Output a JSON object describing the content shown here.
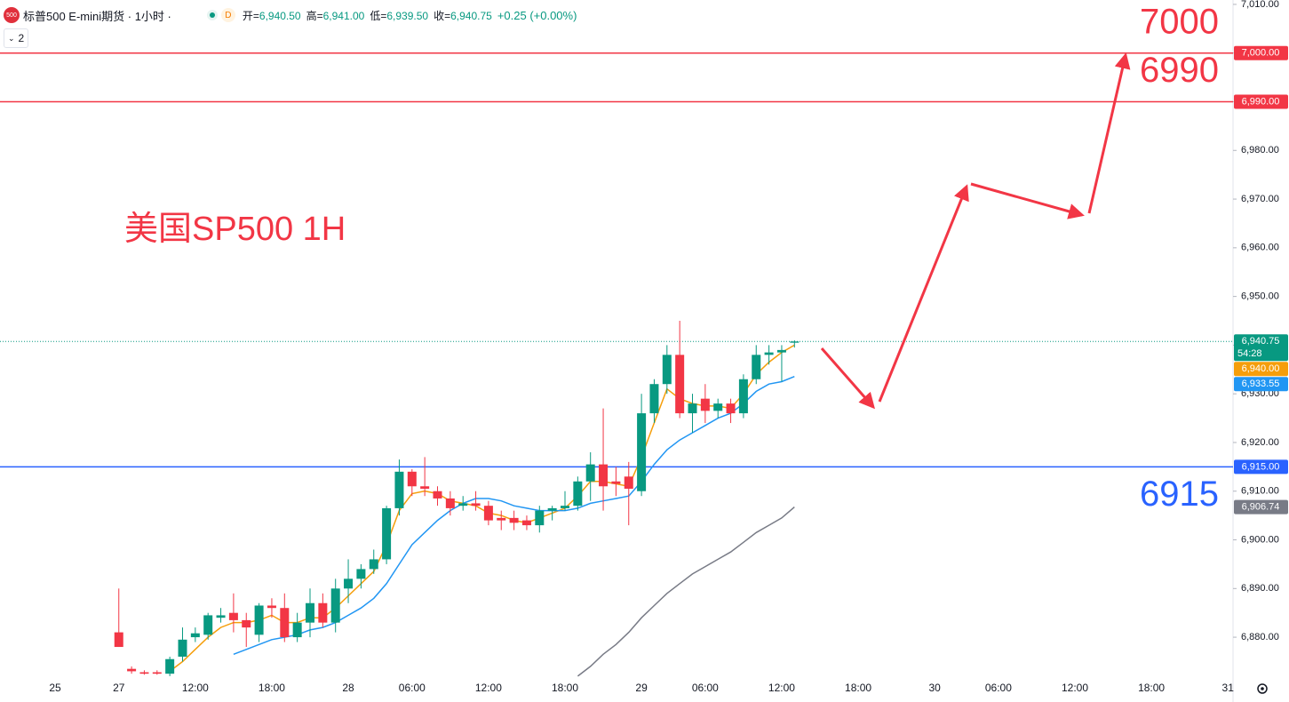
{
  "header": {
    "logo": "500",
    "title": "标普500 E-mini期货 · 1小时 ·",
    "badge": "D",
    "ohlc": [
      {
        "label": "开=",
        "value": "6,940.50"
      },
      {
        "label": "高=",
        "value": "6,941.00"
      },
      {
        "label": "低=",
        "value": "6,939.50"
      },
      {
        "label": "收=",
        "value": "6,940.75"
      }
    ],
    "change": "+0.25 (+0.00%)",
    "indicators": "2"
  },
  "chart_data": {
    "type": "candlestick",
    "annotation": "美国SP500 1H",
    "up_color": "#089981",
    "down_color": "#f23645",
    "categories": [
      "25",
      null,
      null,
      null,
      null,
      "27",
      null,
      null,
      null,
      null,
      null,
      "12:00",
      null,
      null,
      null,
      null,
      null,
      "18:00",
      null,
      null,
      null,
      null,
      null,
      "28",
      null,
      null,
      null,
      null,
      "06:00",
      null,
      null,
      null,
      null,
      null,
      "12:00",
      null,
      null,
      null,
      null,
      null,
      "18:00",
      null,
      null,
      null,
      null,
      null,
      "29",
      null,
      null,
      null,
      null,
      "06:00",
      null,
      null,
      null,
      null,
      null,
      "12:00",
      null,
      null,
      null,
      null,
      null,
      "18:00",
      null,
      null,
      null,
      null,
      null,
      "30",
      null,
      null,
      null,
      null,
      "06:00",
      null,
      null,
      null,
      null,
      null,
      "12:00",
      null,
      null,
      null,
      null,
      null,
      "18:00",
      null,
      null,
      null,
      null,
      null,
      "31"
    ],
    "open": [
      null,
      null,
      null,
      null,
      null,
      6881,
      6873.5,
      6872.8,
      6872.8,
      6872.5,
      6876,
      6880,
      6880.5,
      6884,
      6885,
      6883.5,
      6880.5,
      6886.5,
      6886,
      6880,
      6883,
      6887,
      6883,
      6890,
      6892,
      6894,
      6896,
      6906.5,
      6914,
      6911,
      6910,
      6908.5,
      6907,
      6907.5,
      6907,
      6904.5,
      6904.5,
      6904,
      6903,
      6906,
      6906.5,
      6907,
      6912,
      6915.5,
      6912,
      6913,
      6910,
      6926,
      6932,
      6938,
      6926,
      6929,
      6926.5,
      6928,
      6926,
      6933,
      6938,
      6938.5,
      6940.5,
      null,
      null,
      null,
      null,
      null,
      null,
      null,
      null,
      null,
      null,
      null,
      null,
      null,
      null,
      null,
      null,
      null,
      null,
      null,
      null,
      null,
      null,
      null,
      null,
      null,
      null,
      null,
      null,
      null,
      null,
      null,
      null,
      null,
      null
    ],
    "high": [
      null,
      null,
      null,
      null,
      null,
      6890,
      6874,
      6873.2,
      6873.2,
      6876,
      6882,
      6882,
      6885,
      6886,
      6889,
      6885,
      6887,
      6888,
      6889,
      6885,
      6890,
      6889,
      6892,
      6896,
      6895,
      6898,
      6907,
      6916.5,
      6914.5,
      6917,
      6911,
      6910,
      6909,
      6910,
      6908,
      6906,
      6906,
      6905,
      6907,
      6907,
      6910,
      6913,
      6918,
      6927,
      6915,
      6916,
      6930,
      6933,
      6940,
      6945,
      6930,
      6932,
      6929,
      6929,
      6934,
      6940,
      6940,
      6940,
      6941,
      null,
      null,
      null,
      null,
      null,
      null,
      null,
      null,
      null,
      null,
      null,
      null,
      null,
      null,
      null,
      null,
      null,
      null,
      null,
      null,
      null,
      null,
      null,
      null,
      null,
      null,
      null,
      null,
      null,
      null,
      null,
      null,
      null,
      null
    ],
    "low": [
      null,
      null,
      null,
      null,
      null,
      6878,
      6872.5,
      6872.3,
      6872.3,
      6872,
      6875,
      6879,
      6879.5,
      6883,
      6881,
      6878,
      6879,
      6884,
      6879,
      6879,
      6880,
      6882,
      6881,
      6887,
      6890,
      6893,
      6895,
      6905,
      6909,
      6909,
      6907,
      6905,
      6906,
      6906,
      6903,
      6902,
      6902,
      6902,
      6901.5,
      6904,
      6906,
      6906,
      6908,
      6906,
      6909,
      6903,
      6909,
      6924,
      6930,
      6925,
      6922,
      6924,
      6925,
      6924,
      6925,
      6932,
      6936,
      6932.5,
      6939.5,
      null,
      null,
      null,
      null,
      null,
      null,
      null,
      null,
      null,
      null,
      null,
      null,
      null,
      null,
      null,
      null,
      null,
      null,
      null,
      null,
      null,
      null,
      null,
      null,
      null,
      null,
      null,
      null,
      null,
      null,
      null,
      null,
      null,
      null
    ],
    "close": [
      null,
      null,
      null,
      null,
      null,
      6878,
      6873,
      6872.5,
      6872.5,
      6875.5,
      6879.5,
      6880.8,
      6884.5,
      6884.5,
      6883.5,
      6882,
      6886.5,
      6886,
      6880,
      6883,
      6887,
      6883,
      6890,
      6892,
      6894,
      6896,
      6906.5,
      6914,
      6911,
      6910.5,
      6908.5,
      6906.5,
      6907.5,
      6907,
      6904,
      6904,
      6903.5,
      6903,
      6906,
      6906.5,
      6907,
      6912,
      6915.5,
      6911,
      6911.5,
      6910.5,
      6926,
      6932,
      6938,
      6926,
      6928,
      6926.5,
      6928,
      6926,
      6933,
      6938,
      6938.5,
      6939,
      6940.75,
      null,
      null,
      null,
      null,
      null,
      null,
      null,
      null,
      null,
      null,
      null,
      null,
      null,
      null,
      null,
      null,
      null,
      null,
      null,
      null,
      null,
      null,
      null,
      null,
      null,
      null,
      null,
      null,
      null,
      null,
      null,
      null,
      null,
      null
    ],
    "series": [
      {
        "color": "#f59e0b",
        "last_label": "6,940.00",
        "values": [
          null,
          null,
          null,
          null,
          null,
          null,
          null,
          null,
          null,
          6873,
          6875,
          6877.5,
          6880,
          6882,
          6883,
          6883,
          6883.5,
          6884.5,
          6883,
          6883,
          6884,
          6884,
          6886,
          6888.5,
          6891,
          6893.5,
          6899,
          6906,
          6909.5,
          6910,
          6909.5,
          6908,
          6907.5,
          6907,
          6905.5,
          6905,
          6904,
          6903.5,
          6904.5,
          6905.5,
          6906.5,
          6909,
          6912,
          6912,
          6911.5,
          6911,
          6917,
          6924,
          6931,
          6929,
          6928,
          6927.5,
          6927.5,
          6927,
          6930,
          6934,
          6936.5,
          6938.5,
          6940,
          null,
          null,
          null,
          null,
          null,
          null,
          null,
          null,
          null,
          null,
          null,
          null,
          null,
          null,
          null,
          null,
          null,
          null,
          null,
          null,
          null,
          null,
          null,
          null,
          null,
          null,
          null,
          null,
          null,
          null,
          null,
          null,
          null,
          null
        ]
      },
      {
        "color": "#2196f3",
        "last_label": "6,933.55",
        "values": [
          null,
          null,
          null,
          null,
          null,
          null,
          null,
          null,
          null,
          null,
          null,
          null,
          null,
          null,
          6876.5,
          6877.5,
          6878.5,
          6879.5,
          6880,
          6880.5,
          6881.5,
          6882,
          6883,
          6884.5,
          6886,
          6888,
          6891,
          6895,
          6899,
          6901.5,
          6904,
          6906,
          6907.5,
          6908.5,
          6908.5,
          6908,
          6907,
          6906.5,
          6906,
          6906,
          6906,
          6906.5,
          6907.5,
          6908,
          6908.5,
          6909,
          6912,
          6915.5,
          6918.5,
          6920.5,
          6922,
          6923.5,
          6925,
          6926,
          6928,
          6930.5,
          6932,
          6932.5,
          6933.55,
          null,
          null,
          null,
          null,
          null,
          null,
          null,
          null,
          null,
          null,
          null,
          null,
          null,
          null,
          null,
          null,
          null,
          null,
          null,
          null,
          null,
          null,
          null,
          null,
          null,
          null,
          null,
          null,
          null,
          null,
          null,
          null,
          null,
          null
        ]
      },
      {
        "color": "#787b86",
        "last_label": "6,906.74",
        "values": [
          null,
          null,
          null,
          null,
          null,
          null,
          null,
          null,
          null,
          null,
          null,
          null,
          null,
          null,
          null,
          null,
          null,
          null,
          null,
          null,
          null,
          null,
          null,
          null,
          null,
          null,
          null,
          null,
          null,
          null,
          null,
          null,
          null,
          null,
          null,
          null,
          null,
          null,
          null,
          null,
          null,
          6872,
          6874,
          6876.5,
          6878.5,
          6881,
          6884,
          6886.5,
          6889,
          6891,
          6893,
          6894.5,
          6896,
          6897.5,
          6899.5,
          6901.5,
          6903,
          6904.5,
          6906.74,
          null,
          null,
          null,
          null,
          null,
          null,
          null,
          null,
          null,
          null,
          null,
          null,
          null,
          null,
          null,
          null,
          null,
          null,
          null,
          null,
          null,
          null,
          null,
          null,
          null,
          null,
          null,
          null,
          null,
          null,
          null,
          null,
          null,
          null
        ]
      }
    ],
    "last_price": {
      "value": 6940.75,
      "label": "6,940.75",
      "countdown": "54:28",
      "color": "#089981"
    },
    "levels": [
      {
        "value": 7000,
        "label": "7,000.00",
        "note": "7000",
        "color": "#f23645"
      },
      {
        "value": 6990,
        "label": "6,990.00",
        "note": "6990",
        "color": "#f23645"
      },
      {
        "value": 6915,
        "label": "6,915.00",
        "note": "6915",
        "color": "#2962ff"
      }
    ],
    "ylim": [
      6871.8,
      7010.9
    ],
    "yticks": [
      {
        "value": 6880,
        "label": "6,880.00"
      },
      {
        "value": 6890,
        "label": "6,890.00"
      },
      {
        "value": 6900,
        "label": "6,900.00"
      },
      {
        "value": 6910,
        "label": "6,910.00"
      },
      {
        "value": 6920,
        "label": "6,920.00"
      },
      {
        "value": 6930,
        "label": "6,930.00"
      },
      {
        "value": 6940,
        "label": "6,940.00"
      },
      {
        "value": 6950,
        "label": "6,950.00"
      },
      {
        "value": 6960,
        "label": "6,960.00"
      },
      {
        "value": 6970,
        "label": "6,970.00"
      },
      {
        "value": 6980,
        "label": "6,980.00"
      },
      {
        "value": 6990,
        "label": "6,990.00"
      },
      {
        "value": 7000,
        "label": "7,000.00"
      },
      {
        "value": 7010,
        "label": "7,010.00"
      }
    ]
  }
}
